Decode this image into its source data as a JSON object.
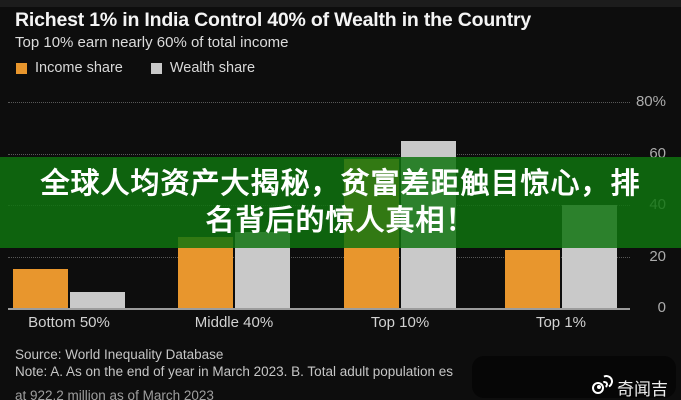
{
  "header": {
    "title": "Richest 1% in India Control 40% of Wealth in the Country",
    "subtitle": "Top 10% earn nearly 60% of total income"
  },
  "legend": [
    {
      "label": "Income share",
      "color": "#e8962d"
    },
    {
      "label": "Wealth share",
      "color": "#c9c9c9"
    }
  ],
  "chart_data": {
    "type": "bar",
    "title": "Richest 1% in India Control 40% of Wealth in the Country",
    "subtitle": "Top 10% earn nearly 60% of total income",
    "categories": [
      "Bottom 50%",
      "Middle 40%",
      "Top 10%",
      "Top 1%"
    ],
    "series": [
      {
        "name": "Income share",
        "color": "#e8962d",
        "values": [
          15,
          27.5,
          57.7,
          22.6
        ]
      },
      {
        "name": "Wealth share",
        "color": "#c9c9c9",
        "values": [
          6.4,
          29.5,
          65,
          40.1
        ]
      }
    ],
    "xlabel": "",
    "ylabel": "",
    "ylim": [
      0,
      80
    ],
    "yticks": [
      {
        "value": 0,
        "label": "0"
      },
      {
        "value": 20,
        "label": "20"
      },
      {
        "value": 40,
        "label": "40"
      },
      {
        "value": 60,
        "label": "60"
      },
      {
        "value": 80,
        "label": "80%"
      }
    ],
    "grid": "horizontal-dotted",
    "legend_position": "top-left"
  },
  "overlay_banner": {
    "line1": "全球人均资产大揭秘，贫富差距触目惊心，排",
    "line2": "名背后的惊人真相！",
    "background_color": "#0e730e"
  },
  "footer": {
    "source": "Source: World Inequality Database",
    "note_line1": "Note: A. As on the end of year in March 2023. B. Total adult population es",
    "note_line2": "at 922.2 million as of March 2023"
  },
  "watermark": {
    "icon": "weibo-eye-icon",
    "text": "奇闻吉"
  },
  "colors": {
    "background": "#0d0d0d",
    "income_bar": "#e8962d",
    "wealth_bar": "#c9c9c9",
    "banner_green": "#0e730e"
  }
}
